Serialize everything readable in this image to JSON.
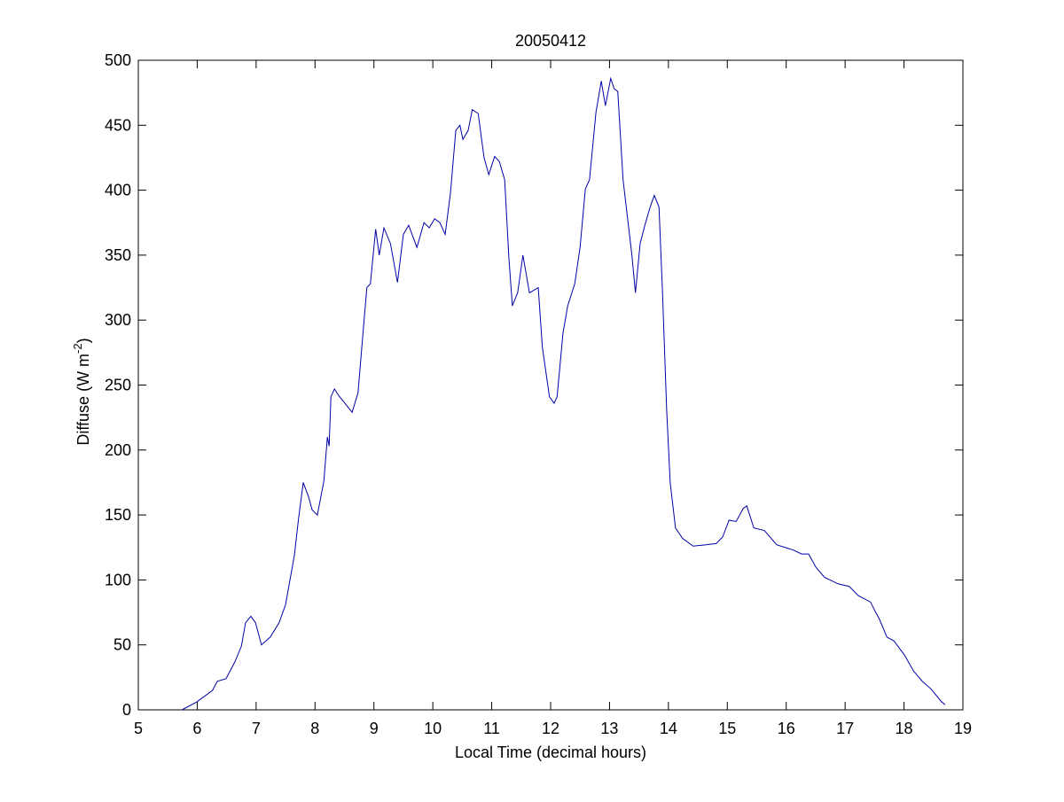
{
  "chart_data": {
    "type": "line",
    "title": "20050412",
    "xlabel": "Local Time (decimal hours)",
    "ylabel": {
      "text": "Diffuse (W m",
      "superscript": "-2",
      "suffix": ")"
    },
    "xlim": [
      5,
      19
    ],
    "xticks": [
      5,
      6,
      7,
      8,
      9,
      10,
      11,
      12,
      13,
      14,
      15,
      16,
      17,
      18,
      19
    ],
    "ylim": [
      0,
      500
    ],
    "yticks": [
      0,
      50,
      100,
      150,
      200,
      250,
      300,
      350,
      400,
      450,
      500
    ],
    "grid": false,
    "series": [
      {
        "color": "#0000a8",
        "x": [
          5.74,
          5.99,
          6.26,
          6.34,
          6.49,
          6.64,
          6.75,
          6.82,
          6.91,
          6.99,
          7.09,
          7.24,
          7.39,
          7.5,
          7.65,
          7.72,
          7.8,
          7.89,
          7.95,
          8.04,
          8.15,
          8.21,
          8.24,
          8.27,
          8.33,
          8.4,
          8.49,
          8.63,
          8.73,
          8.82,
          8.88,
          8.94,
          9.03,
          9.09,
          9.17,
          9.28,
          9.4,
          9.5,
          9.59,
          9.73,
          9.85,
          9.94,
          10.03,
          10.12,
          10.21,
          10.3,
          10.39,
          10.46,
          10.51,
          10.6,
          10.67,
          10.77,
          10.87,
          10.95,
          11.05,
          11.13,
          11.22,
          11.29,
          11.35,
          11.44,
          11.53,
          11.64,
          11.79,
          11.86,
          11.98,
          12.06,
          12.11,
          12.21,
          12.29,
          12.41,
          12.5,
          12.59,
          12.66,
          12.77,
          12.86,
          12.93,
          13.02,
          13.08,
          13.14,
          13.23,
          13.31,
          13.38,
          13.44,
          13.52,
          13.6,
          13.69,
          13.76,
          13.84,
          13.9,
          13.97,
          14.03,
          14.12,
          14.24,
          14.42,
          14.62,
          14.81,
          14.92,
          15.03,
          15.15,
          15.27,
          15.33,
          15.45,
          15.63,
          15.84,
          16.12,
          16.26,
          16.38,
          16.5,
          16.65,
          16.88,
          17.07,
          17.22,
          17.43,
          17.52,
          17.58,
          17.71,
          17.83,
          18.01,
          18.16,
          18.31,
          18.46,
          18.64,
          18.7
        ],
        "values": [
          0,
          6,
          15,
          22,
          24,
          37,
          49,
          67,
          72,
          67,
          50,
          56,
          67,
          81,
          119,
          147,
          175,
          164,
          154,
          150,
          176,
          210,
          203,
          241,
          247,
          242,
          237,
          229,
          244,
          293,
          325,
          328,
          370,
          350,
          371,
          359,
          329,
          366,
          373,
          356,
          375,
          371,
          378,
          375,
          366,
          398,
          446,
          450,
          439,
          446,
          462,
          459,
          425,
          412,
          426,
          422,
          408,
          349,
          311,
          321,
          350,
          321,
          325,
          279,
          241,
          236,
          241,
          290,
          311,
          328,
          356,
          401,
          408,
          460,
          484,
          465,
          486,
          478,
          476,
          408,
          377,
          350,
          321,
          359,
          373,
          387,
          396,
          387,
          321,
          231,
          175,
          140,
          132,
          126,
          127,
          128,
          133,
          146,
          145,
          155,
          157,
          140,
          138,
          127,
          123,
          120,
          120,
          110,
          102,
          97,
          95,
          88,
          83,
          75,
          70,
          56,
          53,
          42,
          30,
          22,
          16,
          6,
          4
        ]
      }
    ]
  }
}
